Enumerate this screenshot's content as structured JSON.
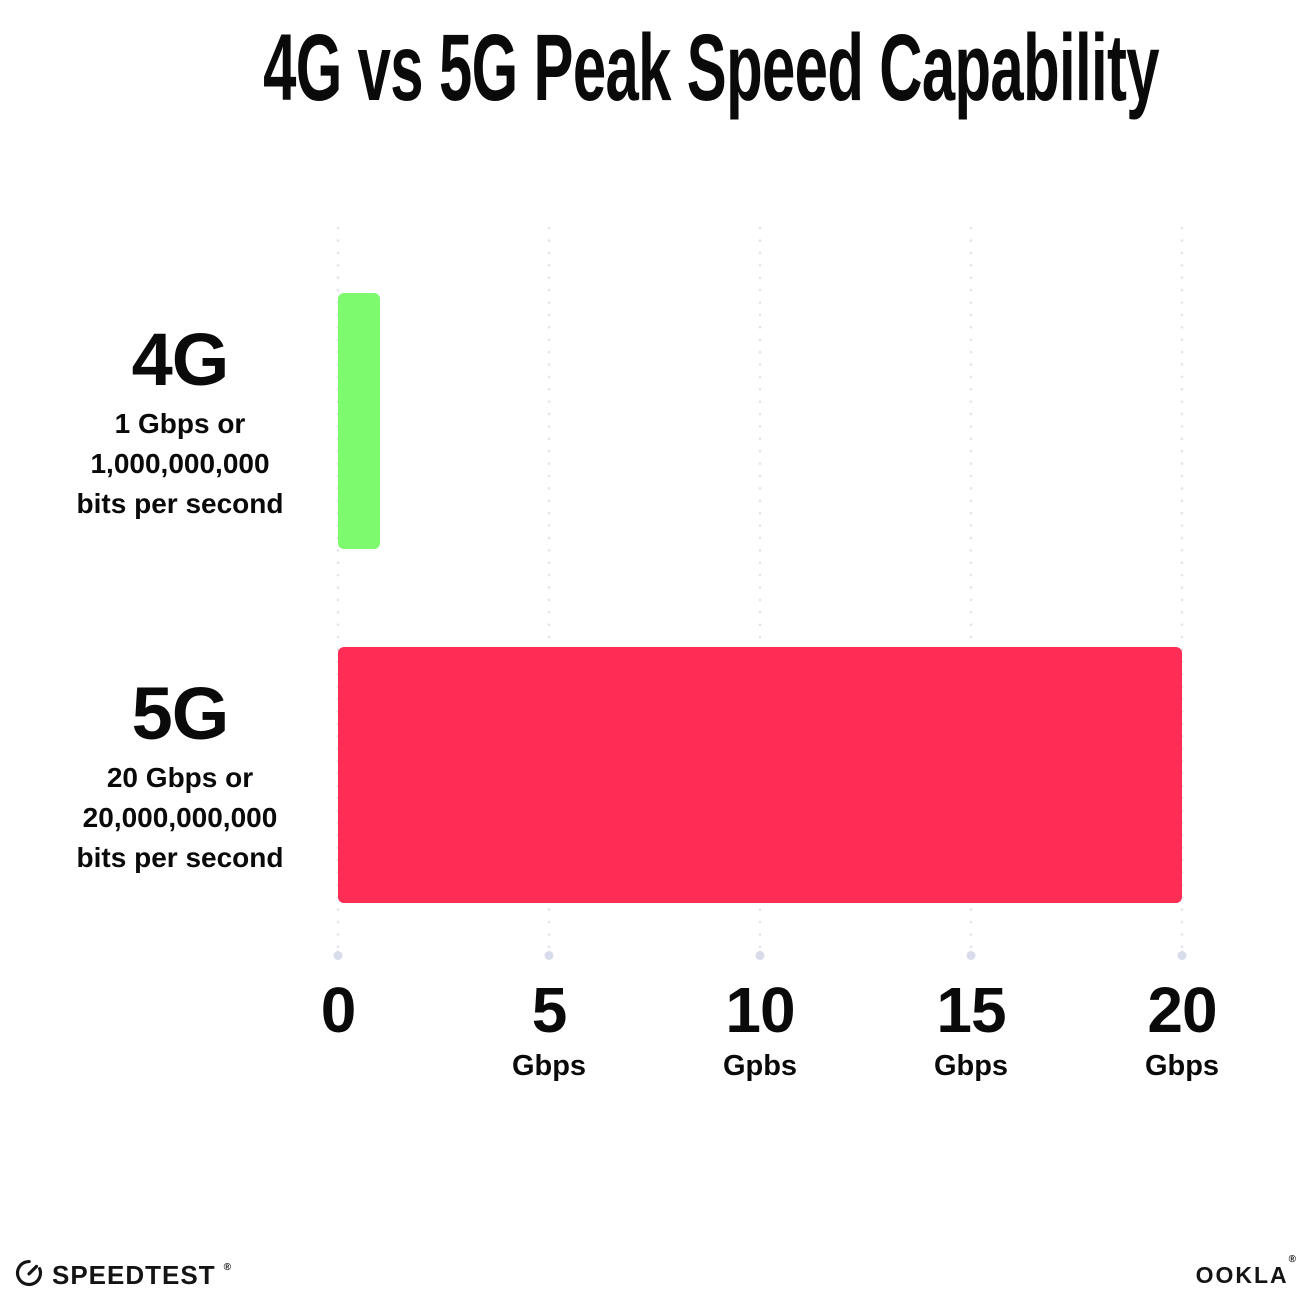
{
  "title": "4G vs 5G Peak Speed Capability",
  "chart_data": {
    "type": "bar",
    "orientation": "horizontal",
    "title": "4G vs 5G Peak Speed Capability",
    "categories": [
      "4G",
      "5G"
    ],
    "values": [
      1,
      20
    ],
    "series": [
      {
        "name": "4G",
        "value": 1,
        "color": "#7dfa6e",
        "sublabel_lines": [
          "1 Gbps or",
          "1,000,000,000",
          "bits per second"
        ]
      },
      {
        "name": "5G",
        "value": 20,
        "color": "#ff2d55",
        "sublabel_lines": [
          "20 Gbps or",
          "20,000,000,000",
          "bits per second"
        ]
      }
    ],
    "xlabel": "",
    "ylabel": "",
    "xlim": [
      0,
      20
    ],
    "x_ticks": [
      {
        "value": 0,
        "label": "0",
        "unit": ""
      },
      {
        "value": 5,
        "label": "5",
        "unit": "Gbps"
      },
      {
        "value": 10,
        "label": "10",
        "unit": "Gpbs"
      },
      {
        "value": 15,
        "label": "15",
        "unit": "Gbps"
      },
      {
        "value": 20,
        "label": "20",
        "unit": "Gbps"
      }
    ],
    "grid": "dotted-vertical-gridlines",
    "legend": "none",
    "background": "#ffffff"
  },
  "colors": {
    "bar_4g": "#7dfa6e",
    "bar_5g": "#ff2d55",
    "grid_dot": "#e2e3ee",
    "grid_end_dot": "#d8dbea",
    "text": "#0a0a0a"
  },
  "footer": {
    "speedtest_label": "SPEEDTEST",
    "ookla_label": "OOKLA",
    "trademark": "®"
  },
  "icons": {
    "speedtest_gauge": "speedtest-gauge-icon"
  }
}
